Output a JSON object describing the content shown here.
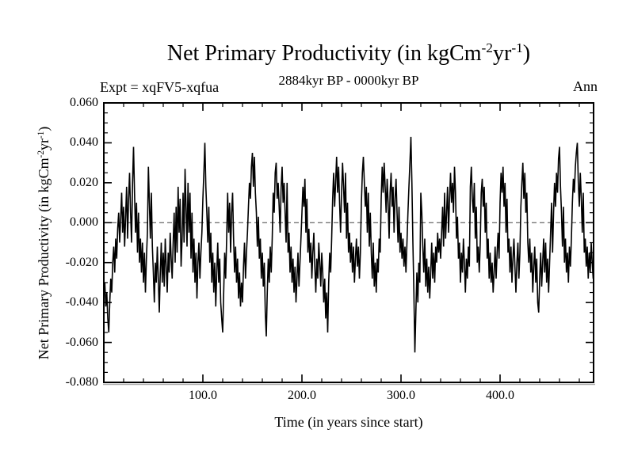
{
  "labels": {
    "title_main": "Net Primary Productivity (in kgCm",
    "title_sup1": "-2",
    "title_mid": "yr",
    "title_sup2": "-1",
    "title_end": ")",
    "subtitle": "2884kyr BP - 0000kyr BP",
    "experiment": "Expt = xqFV5-xqfua",
    "mean_type": "Ann",
    "ylabel_main": "Net Primary Productivity (in kgCm",
    "ylabel_sup1": "-2",
    "ylabel_mid": "yr",
    "ylabel_sup2": "-1",
    "ylabel_end": ")",
    "xlabel": "Time (in years since start)"
  },
  "colors": {
    "line": "#000000",
    "axis": "#000000",
    "zero_line": "#444444",
    "axis_shadow": "#aaaaaa",
    "background": "#ffffff"
  },
  "chart_data": {
    "type": "line",
    "title": "Net Primary Productivity (in kgCm-2yr-1)",
    "subtitle": "2884kyr BP - 0000kyr BP",
    "xlabel": "Time (in years since start)",
    "ylabel": "Net Primary Productivity (in kgCm-2yr-1)",
    "legend": "none",
    "grid": false,
    "xlim": [
      0,
      494.4
    ],
    "ylim": [
      -0.08,
      0.06
    ],
    "x_major_ticks": [
      100,
      200,
      300,
      400
    ],
    "x_major_labels": [
      "100.0",
      "200.0",
      "300.0",
      "400.0"
    ],
    "x_minor_step": 20,
    "y_major_ticks": [
      0.06,
      0.04,
      0.02,
      0.0,
      -0.02,
      -0.04,
      -0.06,
      -0.08
    ],
    "y_major_labels": [
      "0.060",
      "0.040",
      "0.020",
      "0.000",
      "-0.020",
      "-0.040",
      "-0.060",
      "-0.080"
    ],
    "y_minor_step": 0.005,
    "zero_line_y": 0.0,
    "x_start": 0,
    "x_step": 1,
    "values": [
      -0.037,
      -0.03,
      -0.042,
      -0.035,
      -0.048,
      -0.055,
      -0.04,
      -0.028,
      -0.035,
      -0.02,
      -0.012,
      -0.025,
      -0.008,
      -0.018,
      -0.003,
      0.005,
      -0.01,
      0.002,
      0.015,
      -0.005,
      0.008,
      -0.012,
      0.003,
      0.018,
      -0.008,
      0.012,
      0.025,
      0.005,
      -0.01,
      0.02,
      0.038,
      0.015,
      -0.005,
      0.01,
      -0.015,
      0.005,
      -0.02,
      -0.008,
      -0.025,
      -0.01,
      -0.03,
      -0.015,
      -0.035,
      -0.018,
      -0.005,
      0.028,
      0.01,
      -0.008,
      0.015,
      -0.012,
      -0.025,
      -0.04,
      -0.02,
      -0.03,
      -0.012,
      -0.028,
      -0.045,
      -0.025,
      -0.01,
      -0.03,
      -0.015,
      -0.032,
      -0.008,
      -0.022,
      -0.035,
      -0.015,
      -0.025,
      -0.005,
      -0.018,
      -0.028,
      -0.01,
      0.005,
      -0.02,
      0.008,
      -0.015,
      0.018,
      -0.005,
      0.012,
      -0.022,
      -0.008,
      0.015,
      -0.01,
      0.027,
      0.008,
      -0.012,
      0.02,
      -0.005,
      0.015,
      -0.018,
      0.005,
      -0.025,
      -0.008,
      -0.03,
      -0.015,
      -0.038,
      -0.02,
      -0.01,
      -0.028,
      -0.015,
      -0.005,
      0.012,
      0.025,
      0.04,
      0.018,
      0.005,
      -0.01,
      0.008,
      -0.02,
      -0.005,
      -0.03,
      -0.015,
      -0.035,
      -0.02,
      -0.042,
      -0.025,
      -0.01,
      -0.03,
      -0.018,
      -0.04,
      -0.048,
      -0.055,
      -0.035,
      -0.015,
      -0.028,
      -0.008,
      0.015,
      -0.005,
      0.01,
      -0.015,
      0.005,
      0.015,
      -0.008,
      -0.025,
      -0.012,
      -0.03,
      -0.018,
      -0.038,
      -0.025,
      -0.042,
      -0.03,
      -0.04,
      -0.022,
      -0.01,
      -0.028,
      -0.015,
      -0.005,
      0.008,
      0.02,
      0.012,
      0.028,
      0.035,
      0.018,
      0.033,
      0.015,
      0.005,
      -0.012,
      0.003,
      -0.018,
      -0.008,
      -0.028,
      -0.015,
      -0.032,
      -0.02,
      -0.045,
      -0.057,
      -0.035,
      -0.018,
      -0.03,
      -0.012,
      -0.025,
      -0.008,
      0.015,
      0.005,
      0.025,
      0.03,
      0.012,
      0.02,
      0.008,
      -0.005,
      0.018,
      0.028,
      0.01,
      0.02,
      0.005,
      -0.01,
      0.02,
      -0.015,
      -0.005,
      -0.025,
      -0.012,
      -0.03,
      -0.018,
      -0.035,
      -0.022,
      -0.04,
      -0.028,
      -0.015,
      -0.032,
      -0.02,
      -0.008,
      0.005,
      0.018,
      0.008,
      0.022,
      -0.005,
      0.012,
      -0.015,
      -0.003,
      -0.02,
      -0.01,
      -0.028,
      -0.015,
      -0.005,
      -0.022,
      -0.035,
      -0.018,
      -0.028,
      -0.01,
      -0.02,
      -0.032,
      -0.015,
      -0.025,
      -0.04,
      -0.028,
      -0.048,
      -0.035,
      -0.055,
      -0.03,
      -0.015,
      -0.025,
      -0.008,
      0.012,
      0.025,
      0.008,
      0.02,
      0.033,
      0.015,
      0.028,
      0.01,
      -0.005,
      0.015,
      0.03,
      0.018,
      0.005,
      0.025,
      -0.008,
      0.01,
      -0.015,
      -0.005,
      -0.02,
      -0.01,
      -0.025,
      -0.012,
      -0.03,
      -0.018,
      -0.008,
      -0.022,
      -0.012,
      -0.028,
      -0.015,
      0.01,
      0.025,
      0.033,
      0.02,
      0.008,
      0.018,
      -0.005,
      0.015,
      -0.012,
      0.005,
      -0.015,
      -0.028,
      -0.01,
      -0.032,
      -0.02,
      -0.035,
      -0.018,
      -0.025,
      -0.008,
      -0.015,
      0.012,
      0.028,
      0.015,
      0.03,
      0.018,
      0.005,
      0.022,
      0.01,
      -0.008,
      0.015,
      0.025,
      0.008,
      0.018,
      -0.005,
      0.012,
      0.022,
      0.005,
      -0.01,
      0.008,
      -0.015,
      -0.005,
      -0.018,
      -0.008,
      -0.022,
      -0.012,
      -0.025,
      -0.01,
      0.005,
      0.018,
      0.03,
      0.043,
      0.02,
      -0.01,
      -0.035,
      -0.065,
      -0.045,
      -0.025,
      -0.04,
      -0.02,
      -0.03,
      0.015,
      0.005,
      -0.012,
      -0.025,
      -0.008,
      -0.032,
      -0.018,
      -0.035,
      -0.022,
      -0.038,
      -0.025,
      -0.01,
      -0.028,
      -0.015,
      -0.03,
      -0.012,
      -0.02,
      -0.005,
      -0.015,
      -0.008,
      -0.018,
      -0.005,
      0.008,
      -0.012,
      0.015,
      -0.008,
      0.005,
      0.018,
      -0.005,
      0.012,
      0.025,
      0.01,
      0.02,
      0.005,
      0.028,
      0.015,
      -0.008,
      0.003,
      -0.018,
      -0.01,
      -0.03,
      -0.015,
      -0.025,
      -0.008,
      -0.02,
      -0.035,
      -0.018,
      -0.028,
      -0.012,
      -0.022,
      0.018,
      0.028,
      0.012,
      0.005,
      0.02,
      -0.008,
      0.008,
      -0.02,
      -0.012,
      -0.025,
      -0.01,
      0.015,
      0.022,
      0.008,
      0.018,
      -0.005,
      0.01,
      -0.018,
      -0.008,
      -0.028,
      -0.015,
      -0.03,
      -0.02,
      -0.035,
      -0.025,
      -0.012,
      -0.028,
      -0.015,
      -0.005,
      -0.018,
      0.01,
      0.025,
      0.015,
      0.028,
      0.008,
      0.02,
      -0.005,
      0.012,
      -0.015,
      -0.008,
      -0.025,
      -0.012,
      -0.03,
      -0.018,
      -0.008,
      -0.022,
      -0.035,
      -0.02,
      -0.01,
      -0.028,
      -0.015,
      0.008,
      0.02,
      0.03,
      0.012,
      0.025,
      0.005,
      0.015,
      -0.01,
      -0.02,
      -0.008,
      -0.025,
      -0.015,
      -0.035,
      -0.022,
      -0.012,
      -0.03,
      -0.018,
      -0.04,
      -0.045,
      -0.028,
      -0.015,
      -0.032,
      -0.02,
      -0.008,
      -0.025,
      -0.01,
      -0.03,
      -0.018,
      -0.035,
      -0.02,
      -0.005,
      0.01,
      -0.015,
      0.005,
      0.02,
      0.008,
      0.025,
      0.015,
      0.032,
      0.038,
      0.018,
      0.005,
      -0.012,
      0.008,
      -0.02,
      -0.008,
      -0.025,
      -0.015,
      -0.03,
      -0.012,
      -0.022,
      -0.008,
      0.01,
      0.022,
      0.015,
      0.028,
      0.035,
      0.04,
      0.02,
      0.008,
      0.025,
      0.012,
      -0.005,
      0.015,
      -0.015,
      -0.008,
      -0.022,
      -0.012,
      -0.028,
      -0.015,
      -0.025,
      -0.01,
      -0.02,
      -0.028
    ]
  }
}
